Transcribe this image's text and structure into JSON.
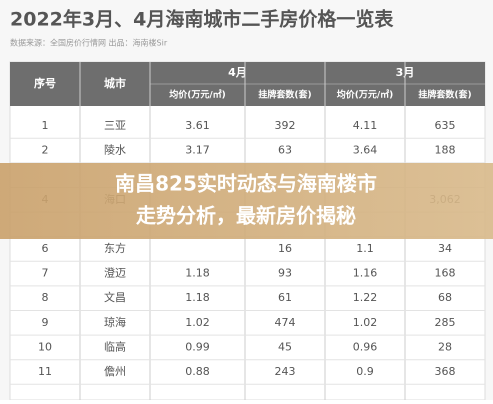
{
  "header": {
    "title": "2022年3月、4月海南城市二手房价格一览表",
    "source": "数据来源：全国房价行情网   出品：海南楼Sir"
  },
  "table": {
    "columns": [
      "序号",
      "城市"
    ],
    "groups": [
      {
        "label": "4月",
        "columns": [
          "均价(万元/㎡)",
          "挂牌套数(套)"
        ]
      },
      {
        "label": "3月",
        "columns": [
          "均价(万元/㎡)",
          "挂牌套数(套)"
        ]
      }
    ],
    "rows": [
      [
        "1",
        "三亚",
        "3.61",
        "392",
        "4.11",
        "635"
      ],
      [
        "2",
        "陵水",
        "3.17",
        "63",
        "3.64",
        "188"
      ],
      [
        "4",
        "海口",
        null,
        null,
        null,
        "3,062"
      ],
      [
        "6",
        "东方",
        null,
        "16",
        "1.1",
        "34"
      ],
      [
        "7",
        "澄迈",
        "1.18",
        "93",
        "1.16",
        "168"
      ],
      [
        "8",
        "文昌",
        "1.18",
        "61",
        "1.22",
        "68"
      ],
      [
        "9",
        "琼海",
        "1.02",
        "474",
        "1.02",
        "285"
      ],
      [
        "10",
        "临高",
        "0.99",
        "45",
        "0.96",
        "28"
      ],
      [
        "11",
        "儋州",
        "0.88",
        "243",
        "0.9",
        "368"
      ]
    ],
    "row_slots": [
      0,
      1,
      3,
      5,
      6,
      7,
      8,
      9,
      10
    ]
  },
  "banner": {
    "lines": [
      "南昌825实时动态与海南楼市",
      "走势分析，最新房价揭秘"
    ]
  }
}
